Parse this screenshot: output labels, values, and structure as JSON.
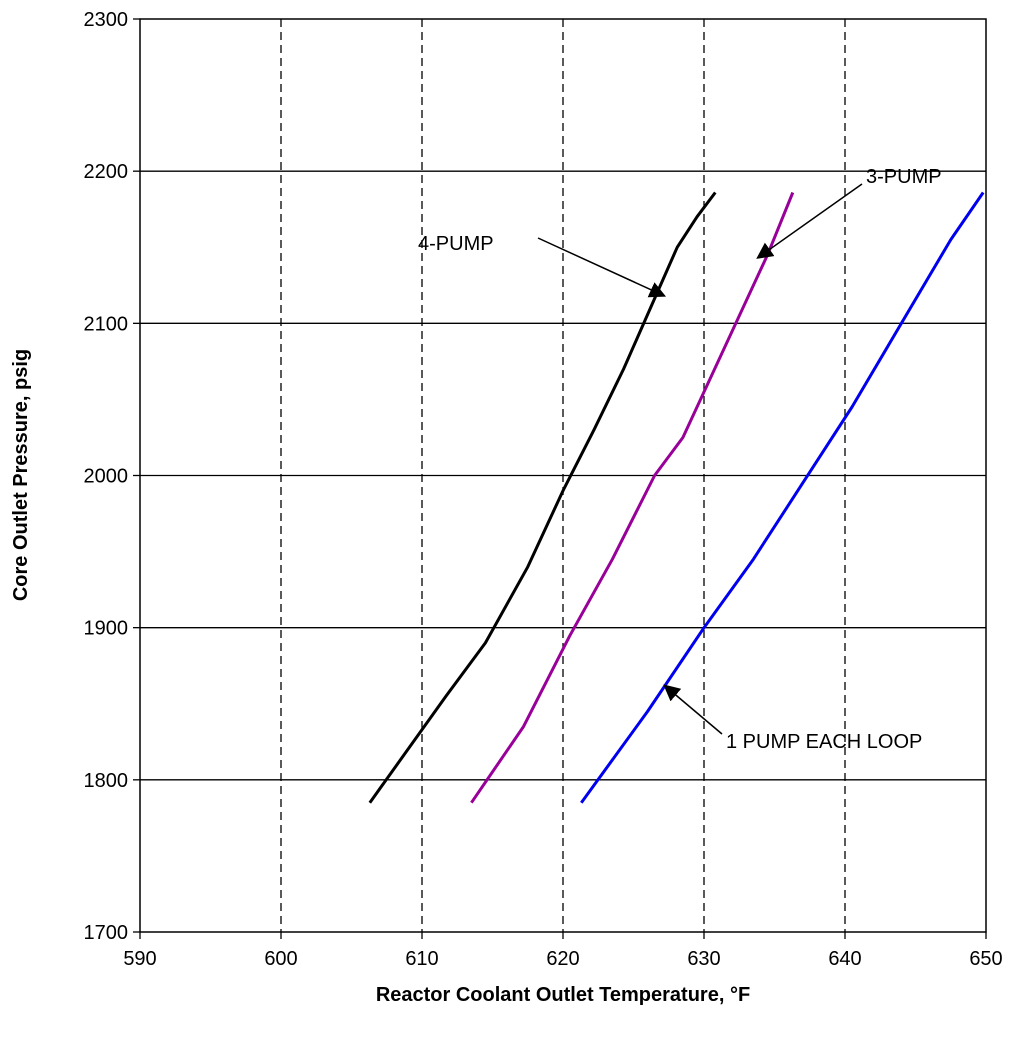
{
  "chart_data": {
    "type": "line",
    "title": "",
    "xlabel": "Reactor Coolant Outlet Temperature, °F",
    "ylabel": "Core Outlet Pressure, psig",
    "xlim": [
      590,
      650
    ],
    "ylim": [
      1700,
      2300
    ],
    "xticks": [
      590,
      600,
      610,
      620,
      630,
      640,
      650
    ],
    "yticks": [
      1700,
      1800,
      1900,
      2000,
      2100,
      2200,
      2300
    ],
    "grid": {
      "x": "dashed",
      "y": "solid"
    },
    "series": [
      {
        "name": "4-PUMP",
        "color": "#000000",
        "x": [
          606.3,
          609.0,
          611.7,
          614.5,
          617.5,
          620.0,
          622.2,
          624.3,
          626.2,
          628.1,
          629.5,
          630.8
        ],
        "y": [
          1785,
          1820,
          1855,
          1890,
          1940,
          1990,
          2030,
          2070,
          2110,
          2150,
          2170,
          2186
        ]
      },
      {
        "name": "3-PUMP",
        "color": "#990099",
        "x": [
          613.5,
          617.2,
          620.5,
          623.5,
          626.5,
          628.5,
          630.5,
          632.5,
          634.5,
          636.3
        ],
        "y": [
          1785,
          1835,
          1895,
          1945,
          2000,
          2025,
          2065,
          2105,
          2145,
          2186
        ]
      },
      {
        "name": "1 PUMP EACH LOOP",
        "color": "#0000EE",
        "x": [
          621.3,
          626.0,
          630.0,
          633.5,
          637.0,
          640.5,
          644.0,
          647.5,
          649.8
        ],
        "y": [
          1785,
          1845,
          1900,
          1945,
          1995,
          2045,
          2100,
          2155,
          2186
        ]
      }
    ],
    "annotations": [
      {
        "text": "4-PUMP",
        "target": [
          627.2,
          2118
        ]
      },
      {
        "text": "3-PUMP",
        "target": [
          633.8,
          2143
        ]
      },
      {
        "text": "1 PUMP EACH LOOP",
        "target": [
          627.2,
          1862
        ]
      }
    ]
  }
}
